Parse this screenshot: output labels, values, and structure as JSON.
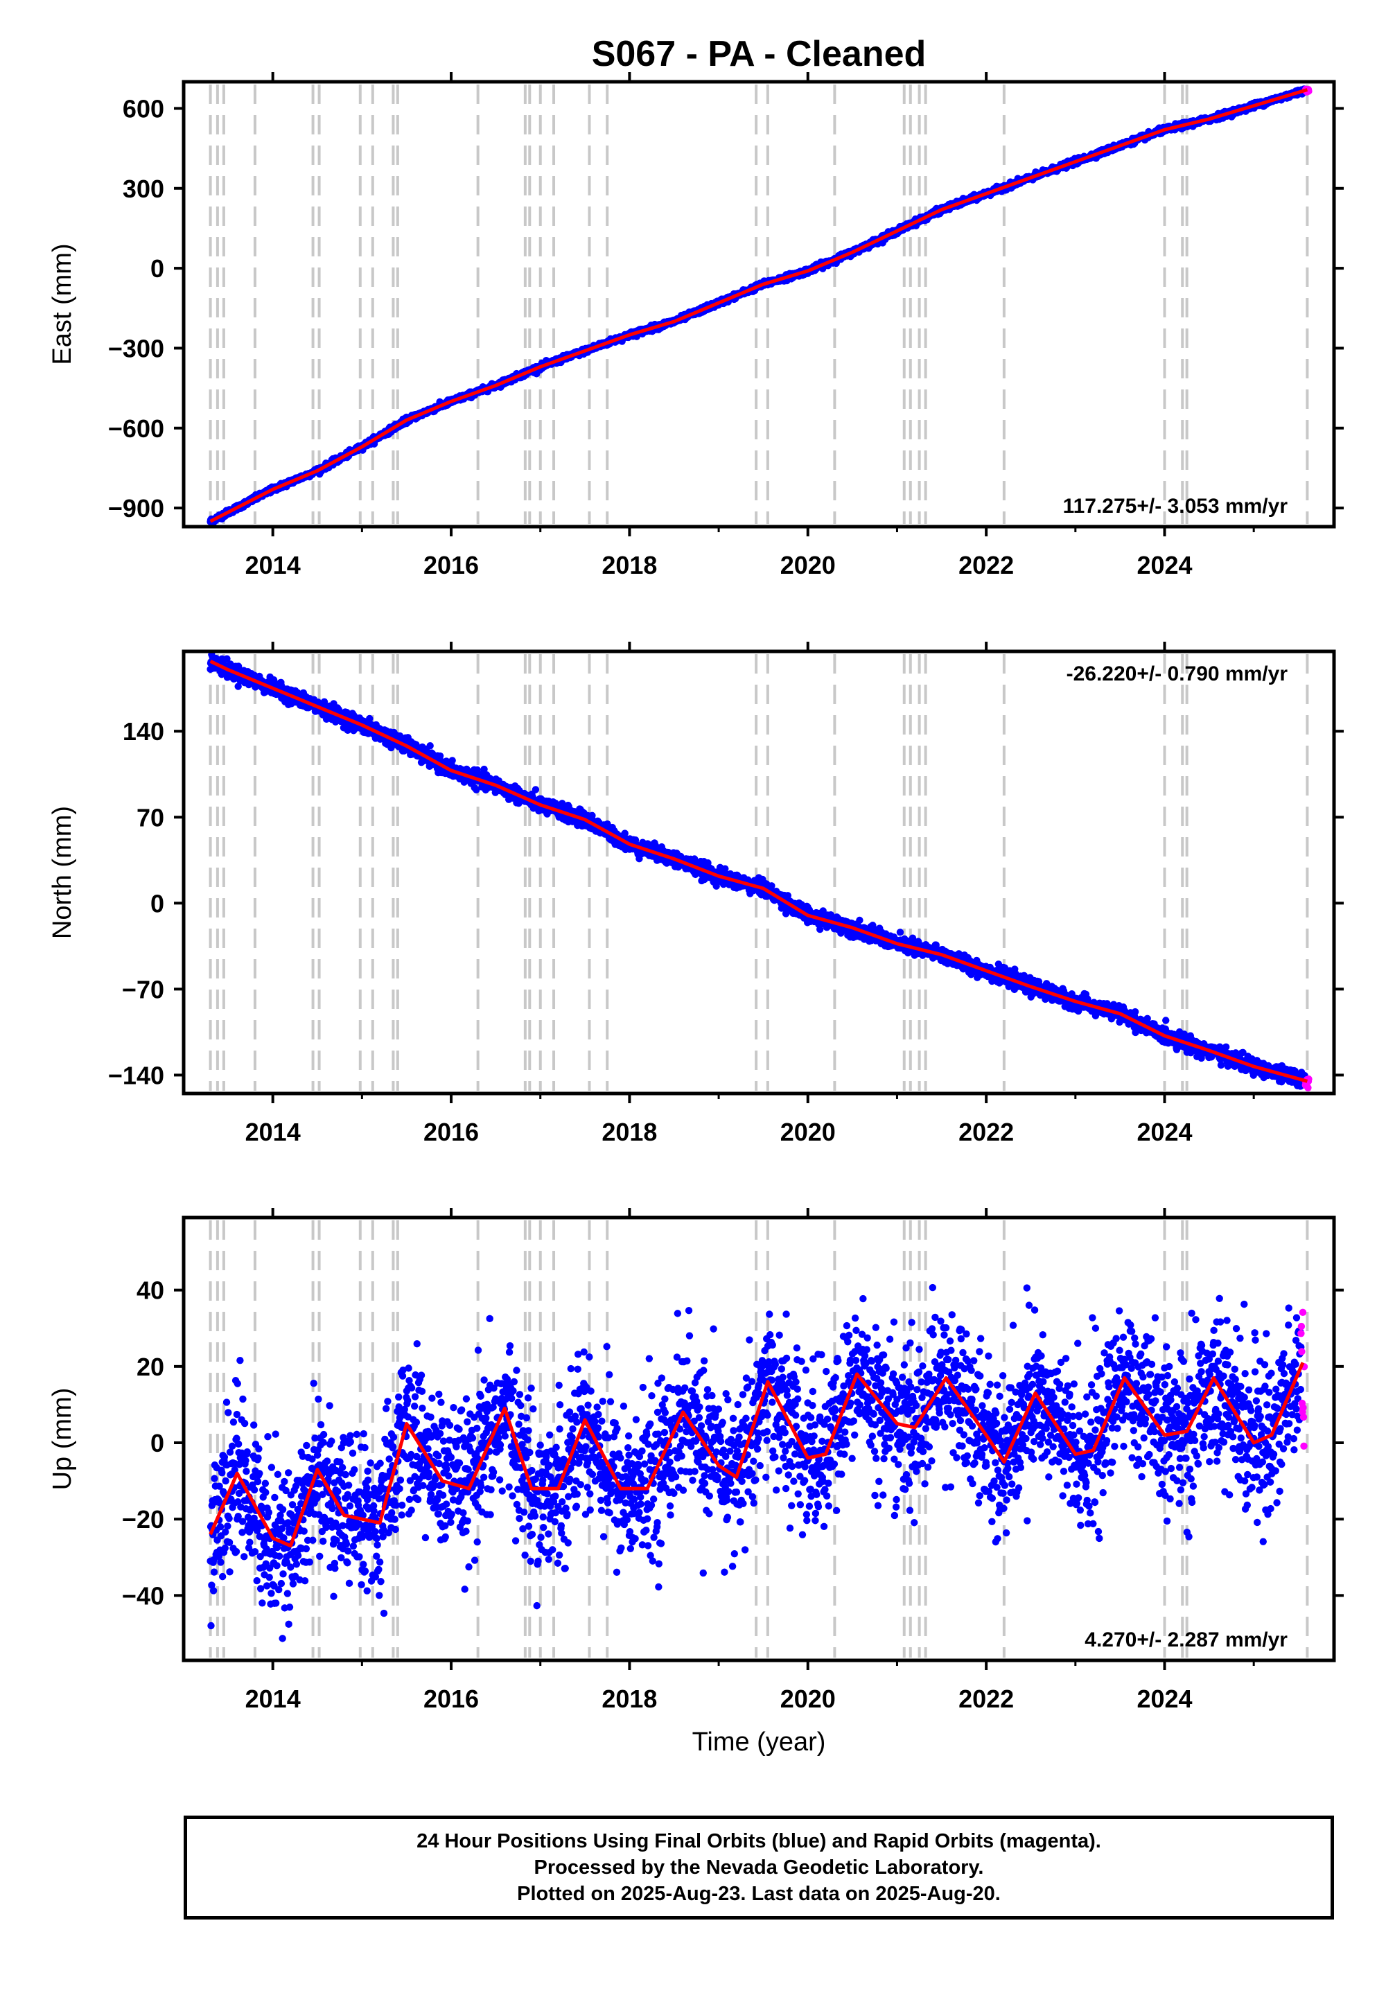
{
  "title": "S067  - PA - Cleaned",
  "colors": {
    "final": "#0000ff",
    "rapid": "#ff00ff",
    "model": "#ff0000",
    "event_line": "#c8c8c8"
  },
  "x_axis": {
    "label": "Time (year)",
    "ticks": [
      "2014",
      "2016",
      "2018",
      "2020",
      "2022",
      "2024"
    ],
    "range": [
      2013.0,
      2025.9
    ]
  },
  "event_lines": [
    2013.3,
    2013.38,
    2013.45,
    2013.8,
    2014.45,
    2014.52,
    2014.98,
    2015.12,
    2015.35,
    2015.4,
    2016.3,
    2016.83,
    2016.88,
    2017.0,
    2017.15,
    2017.55,
    2017.75,
    2019.42,
    2019.55,
    2020.3,
    2021.08,
    2021.15,
    2021.25,
    2021.32,
    2022.2,
    2024.0,
    2024.2,
    2024.25,
    2025.6
  ],
  "chart_data": [
    {
      "type": "scatter",
      "panel": "east",
      "ylabel": "East (mm)",
      "ylim": [
        -970,
        700
      ],
      "yticks": [
        "600",
        "300",
        "0",
        "−300",
        "−600",
        "−900"
      ],
      "rate": "117.275+/- 3.053 mm/yr",
      "rate_position": "bottom-right",
      "grid": false,
      "series": [
        {
          "values": [
            [
              2013.3,
              -950
            ],
            [
              2014.0,
              -830
            ],
            [
              2014.5,
              -760
            ],
            [
              2015.0,
              -670
            ],
            [
              2015.5,
              -570
            ],
            [
              2016.0,
              -500
            ],
            [
              2016.5,
              -440
            ],
            [
              2017.0,
              -370
            ],
            [
              2017.5,
              -310
            ],
            [
              2018.0,
              -250
            ],
            [
              2018.5,
              -200
            ],
            [
              2019.0,
              -130
            ],
            [
              2019.5,
              -60
            ],
            [
              2020.0,
              -10
            ],
            [
              2020.5,
              60
            ],
            [
              2021.0,
              140
            ],
            [
              2021.5,
              220
            ],
            [
              2022.0,
              280
            ],
            [
              2022.5,
              340
            ],
            [
              2023.0,
              400
            ],
            [
              2023.5,
              460
            ],
            [
              2024.0,
              520
            ],
            [
              2024.5,
              560
            ],
            [
              2025.0,
              610
            ],
            [
              2025.6,
              670
            ]
          ]
        }
      ]
    },
    {
      "type": "scatter",
      "panel": "north",
      "ylabel": "North (mm)",
      "ylim": [
        -155,
        205
      ],
      "yticks": [
        "140",
        "70",
        "0",
        "−70",
        "−140"
      ],
      "rate": "-26.220+/- 0.790 mm/yr",
      "rate_position": "top-right",
      "grid": false,
      "series": [
        {
          "values": [
            [
              2013.3,
              197
            ],
            [
              2013.5,
              190
            ],
            [
              2014.0,
              175
            ],
            [
              2014.5,
              160
            ],
            [
              2015.0,
              145
            ],
            [
              2015.5,
              128
            ],
            [
              2016.0,
              108
            ],
            [
              2016.5,
              96
            ],
            [
              2017.0,
              80
            ],
            [
              2017.5,
              68
            ],
            [
              2018.0,
              48
            ],
            [
              2018.5,
              36
            ],
            [
              2019.0,
              22
            ],
            [
              2019.5,
              12
            ],
            [
              2020.0,
              -10
            ],
            [
              2020.5,
              -20
            ],
            [
              2021.0,
              -33
            ],
            [
              2021.5,
              -42
            ],
            [
              2022.0,
              -55
            ],
            [
              2022.5,
              -68
            ],
            [
              2023.0,
              -80
            ],
            [
              2023.5,
              -90
            ],
            [
              2024.0,
              -108
            ],
            [
              2024.5,
              -120
            ],
            [
              2025.0,
              -133
            ],
            [
              2025.6,
              -145
            ]
          ]
        }
      ]
    },
    {
      "type": "scatter",
      "panel": "up",
      "ylabel": "Up (mm)",
      "ylim": [
        -57,
        59
      ],
      "yticks": [
        "40",
        "20",
        "0",
        "−20",
        "−40"
      ],
      "rate": "4.270+/- 2.287 mm/yr",
      "rate_position": "bottom-right",
      "grid": false,
      "series": [
        {
          "values": [
            [
              2013.3,
              -24
            ],
            [
              2013.6,
              -8
            ],
            [
              2014.0,
              -25
            ],
            [
              2014.2,
              -27
            ],
            [
              2014.5,
              -7
            ],
            [
              2014.8,
              -19
            ],
            [
              2015.2,
              -21
            ],
            [
              2015.5,
              5
            ],
            [
              2015.9,
              -10
            ],
            [
              2016.2,
              -12
            ],
            [
              2016.6,
              9
            ],
            [
              2016.9,
              -12
            ],
            [
              2017.2,
              -12
            ],
            [
              2017.5,
              6
            ],
            [
              2017.9,
              -12
            ],
            [
              2018.2,
              -12
            ],
            [
              2018.6,
              8
            ],
            [
              2019.0,
              -6
            ],
            [
              2019.2,
              -9
            ],
            [
              2019.55,
              16
            ],
            [
              2020.0,
              -4
            ],
            [
              2020.2,
              -3
            ],
            [
              2020.55,
              18
            ],
            [
              2021.0,
              5
            ],
            [
              2021.2,
              4
            ],
            [
              2021.55,
              17
            ],
            [
              2022.0,
              2
            ],
            [
              2022.2,
              -5
            ],
            [
              2022.55,
              13
            ],
            [
              2023.0,
              -3
            ],
            [
              2023.2,
              -2
            ],
            [
              2023.55,
              17
            ],
            [
              2024.0,
              2
            ],
            [
              2024.25,
              3
            ],
            [
              2024.55,
              17
            ],
            [
              2025.0,
              0
            ],
            [
              2025.2,
              2
            ],
            [
              2025.55,
              21
            ]
          ]
        }
      ]
    }
  ],
  "footer": {
    "line1": "24 Hour Positions Using Final Orbits (blue) and Rapid Orbits (magenta).",
    "line2": "Processed by the Nevada Geodetic Laboratory.",
    "line3": "Plotted on 2025-Aug-23. Last data on 2025-Aug-20."
  }
}
